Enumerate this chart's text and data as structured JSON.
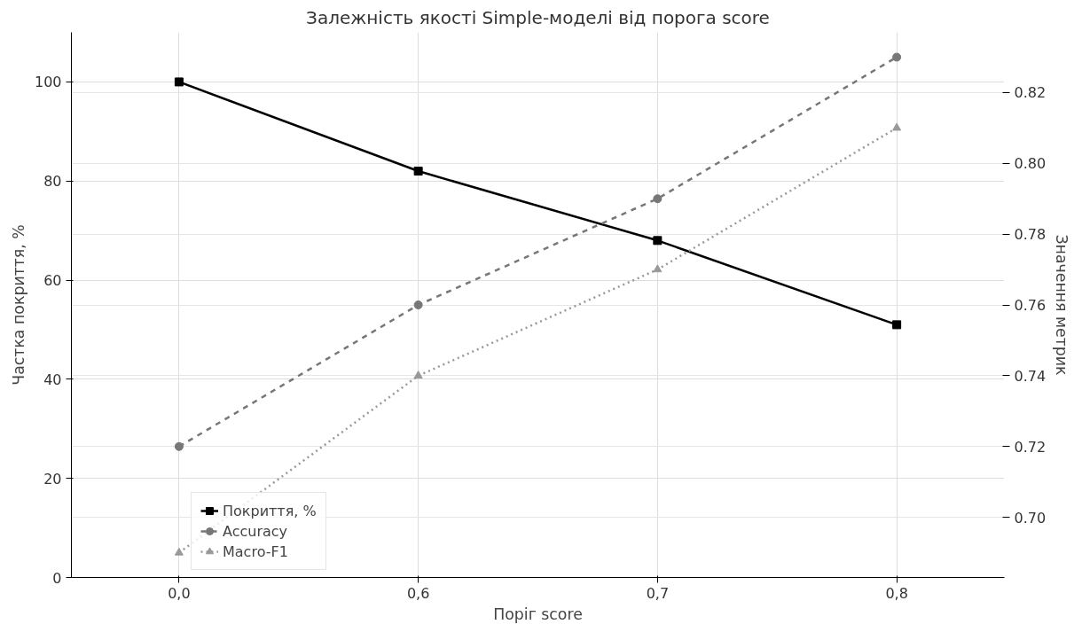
{
  "chart_data": {
    "type": "line",
    "title": "Залежність якості Simple-моделі від порога score",
    "xlabel": "Поріг score",
    "ylabel": "Частка покриття, %",
    "y2label": "Значення метрик",
    "categories": [
      "0,0",
      "0,6",
      "0,7",
      "0,8"
    ],
    "ylim": [
      0,
      110
    ],
    "yticks": [
      0,
      20,
      40,
      60,
      80,
      100
    ],
    "y2lim": [
      0.683,
      0.837
    ],
    "y2ticks": [
      {
        "value": 0.7,
        "label": "0.70"
      },
      {
        "value": 0.72,
        "label": "0.72"
      },
      {
        "value": 0.74,
        "label": "0.74"
      },
      {
        "value": 0.76,
        "label": "0.76"
      },
      {
        "value": 0.78,
        "label": "0.78"
      },
      {
        "value": 0.8,
        "label": "0.80"
      },
      {
        "value": 0.82,
        "label": "0.82"
      }
    ],
    "grid": true,
    "legend": "bottom left",
    "series": [
      {
        "name": "Покриття, %",
        "color": "#000000",
        "values": [
          100,
          82,
          68,
          51
        ],
        "marker": "square",
        "line_style": "solid"
      },
      {
        "name": "Accuracy",
        "color": "#777777",
        "values": [
          0.72,
          0.76,
          0.79,
          0.83
        ],
        "marker": "circle",
        "line_style": "dashed",
        "axis": "y2"
      },
      {
        "name": "Macro-F1",
        "color": "#999999",
        "values": [
          0.69,
          0.74,
          0.77,
          0.81
        ],
        "marker": "triangle",
        "line_style": "dotted",
        "axis": "y2"
      }
    ]
  }
}
